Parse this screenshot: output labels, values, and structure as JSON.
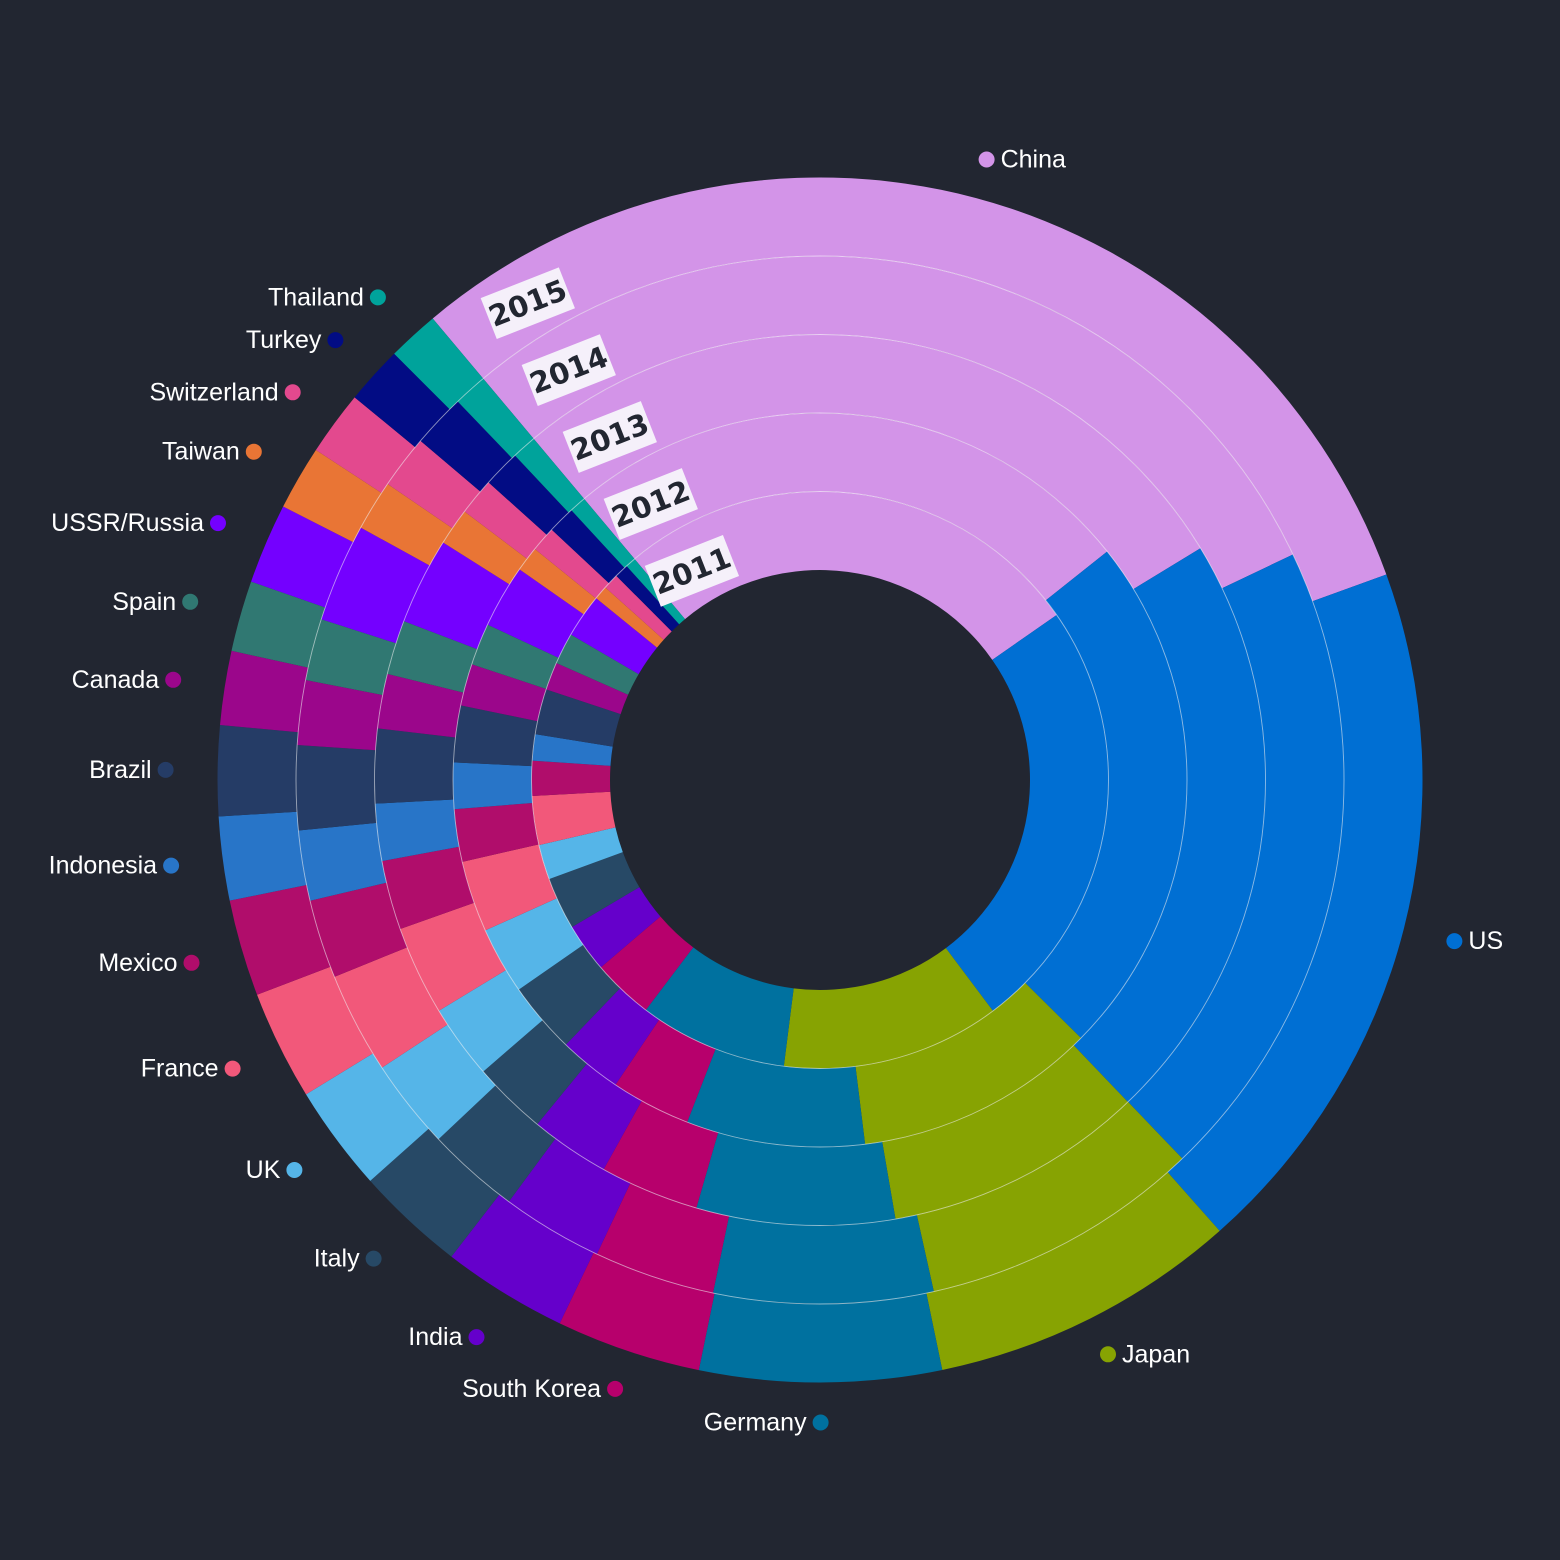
{
  "chart_data": {
    "type": "pie",
    "subtype": "multi-ring donut",
    "title": "",
    "rings": [
      "2011",
      "2012",
      "2013",
      "2014",
      "2015"
    ],
    "series": [
      {
        "name": "China",
        "color": "#D394E8",
        "values": [
          27.0,
          27.5,
          30.5,
          33.5,
          35.4
        ]
      },
      {
        "name": "US",
        "color": "#006FD3",
        "values": [
          25.0,
          25.0,
          24.0,
          23.0,
          22.0
        ]
      },
      {
        "name": "Japan",
        "color": "#87A302",
        "values": [
          12.5,
          11.5,
          10.5,
          10.0,
          9.6
        ]
      },
      {
        "name": "Germany",
        "color": "#00719F",
        "values": [
          8.5,
          8.5,
          8.0,
          7.8,
          7.5
        ]
      },
      {
        "name": "South Korea",
        "color": "#B7006C",
        "values": [
          3.5,
          3.8,
          4.0,
          4.3,
          4.5
        ]
      },
      {
        "name": "India",
        "color": "#6500CB",
        "values": [
          2.8,
          3.0,
          3.2,
          3.6,
          3.9
        ]
      },
      {
        "name": "Italy",
        "color": "#274966",
        "values": [
          3.0,
          3.4,
          3.0,
          3.3,
          3.4
        ]
      },
      {
        "name": "UK",
        "color": "#55B5E8",
        "values": [
          2.0,
          3.2,
          3.0,
          3.2,
          3.3
        ]
      },
      {
        "name": "France",
        "color": "#F2587A",
        "values": [
          2.8,
          3.4,
          3.6,
          3.6,
          3.4
        ]
      },
      {
        "name": "Mexico",
        "color": "#B00D6B",
        "values": [
          2.0,
          2.5,
          2.8,
          2.8,
          3.0
        ]
      },
      {
        "name": "Indonesia",
        "color": "#2875C8",
        "values": [
          1.5,
          2.2,
          2.3,
          2.5,
          2.6
        ]
      },
      {
        "name": "Brazil",
        "color": "#253C66",
        "values": [
          2.6,
          2.7,
          3.0,
          3.0,
          2.8
        ]
      },
      {
        "name": "Canada",
        "color": "#9B068B",
        "values": [
          1.6,
          2.0,
          2.2,
          2.3,
          2.3
        ]
      },
      {
        "name": "Spain",
        "color": "#307872",
        "values": [
          1.8,
          2.0,
          2.2,
          2.2,
          2.2
        ]
      },
      {
        "name": "USSR/Russia",
        "color": "#7400FF",
        "values": [
          2.5,
          3.0,
          3.5,
          3.5,
          2.5
        ]
      },
      {
        "name": "Taiwan",
        "color": "#E97535",
        "values": [
          0.8,
          1.2,
          1.5,
          1.8,
          2.0
        ]
      },
      {
        "name": "Switzerland",
        "color": "#E3498E",
        "values": [
          0.9,
          1.2,
          1.5,
          1.9,
          2.0
        ]
      },
      {
        "name": "Turkey",
        "color": "#020C84",
        "values": [
          0.8,
          1.3,
          1.5,
          1.9,
          1.8
        ]
      },
      {
        "name": "Thailand",
        "color": "#00A39B",
        "values": [
          0.6,
          0.8,
          1.0,
          1.2,
          1.6
        ]
      }
    ],
    "legend_placement": "around chart"
  }
}
